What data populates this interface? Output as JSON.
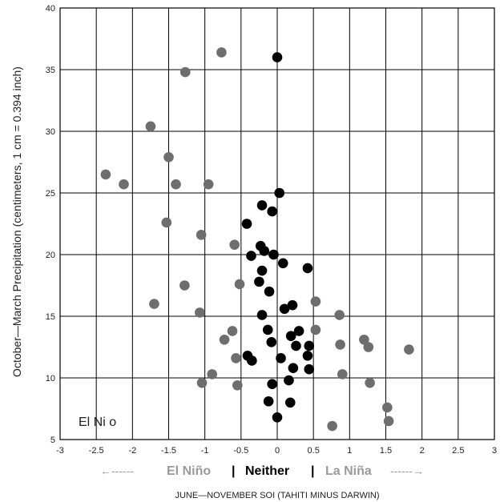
{
  "chart_data": {
    "type": "scatter",
    "ylabel": "October—March Precipitation (centimeters, 1 cm = 0.394 inch)",
    "xlabel": "JUNE—NOVEMBER SOI (TAHITI MINUS DARWIN)",
    "xlim": [
      -3,
      3
    ],
    "ylim": [
      5,
      40
    ],
    "x_ticks": [
      "-3",
      "-2.5",
      "-2",
      "-1.5",
      "-1",
      "-0.5",
      "0",
      "0.5",
      "1",
      "1.5",
      "2",
      "2.5",
      "3"
    ],
    "y_ticks": [
      "5",
      "10",
      "15",
      "20",
      "25",
      "30",
      "35",
      "40"
    ],
    "grid": true,
    "annotation": "El Ni o",
    "categories_bar": {
      "el_nino": "El Niño",
      "separator": "|",
      "neither": "Neither",
      "la_nina": "La Niña",
      "left_arrow": "←------",
      "right_arrow": "------→"
    },
    "colors": {
      "enso": "#6e6e6e",
      "neither": "#000000",
      "el_nino_text": "#9a9a9a",
      "la_nina_text": "#9a9a9a",
      "neither_text": "#000000"
    },
    "series": [
      {
        "category": "enso",
        "points": [
          [
            -0.77,
            36.4
          ],
          [
            -1.27,
            34.8
          ],
          [
            -1.75,
            30.4
          ],
          [
            -1.5,
            27.9
          ],
          [
            -2.37,
            26.5
          ],
          [
            -2.12,
            25.7
          ],
          [
            -1.4,
            25.7
          ],
          [
            -0.95,
            25.7
          ],
          [
            -1.53,
            22.6
          ],
          [
            -1.05,
            21.6
          ],
          [
            -0.59,
            20.8
          ],
          [
            -1.28,
            17.5
          ],
          [
            -0.52,
            17.6
          ],
          [
            -1.7,
            16.0
          ],
          [
            -1.07,
            15.3
          ],
          [
            -0.62,
            13.8
          ],
          [
            -0.73,
            13.1
          ],
          [
            -0.57,
            11.6
          ],
          [
            -0.9,
            10.3
          ],
          [
            -1.04,
            9.6
          ],
          [
            -0.55,
            9.4
          ],
          [
            0.53,
            16.2
          ],
          [
            0.86,
            15.1
          ],
          [
            0.53,
            13.9
          ],
          [
            0.87,
            12.7
          ],
          [
            1.2,
            13.1
          ],
          [
            1.26,
            12.5
          ],
          [
            1.82,
            12.3
          ],
          [
            0.9,
            10.3
          ],
          [
            1.28,
            9.6
          ],
          [
            1.52,
            7.6
          ],
          [
            1.54,
            6.5
          ],
          [
            0.76,
            6.1
          ]
        ]
      },
      {
        "category": "neither",
        "points": [
          [
            0.0,
            36.0
          ],
          [
            0.03,
            25.0
          ],
          [
            -0.21,
            24.0
          ],
          [
            -0.07,
            23.5
          ],
          [
            -0.42,
            22.5
          ],
          [
            -0.23,
            20.7
          ],
          [
            -0.18,
            20.3
          ],
          [
            -0.36,
            19.9
          ],
          [
            -0.05,
            20.0
          ],
          [
            0.08,
            19.3
          ],
          [
            0.42,
            18.9
          ],
          [
            -0.21,
            18.7
          ],
          [
            -0.25,
            17.8
          ],
          [
            -0.11,
            17.0
          ],
          [
            0.21,
            15.9
          ],
          [
            0.1,
            15.6
          ],
          [
            -0.21,
            15.1
          ],
          [
            -0.13,
            13.9
          ],
          [
            0.3,
            13.8
          ],
          [
            0.19,
            13.4
          ],
          [
            -0.08,
            12.9
          ],
          [
            0.26,
            12.6
          ],
          [
            0.44,
            12.6
          ],
          [
            -0.41,
            11.8
          ],
          [
            0.05,
            11.6
          ],
          [
            0.42,
            11.8
          ],
          [
            -0.35,
            11.4
          ],
          [
            0.22,
            10.8
          ],
          [
            0.44,
            10.7
          ],
          [
            0.16,
            9.8
          ],
          [
            -0.07,
            9.5
          ],
          [
            -0.12,
            8.1
          ],
          [
            0.18,
            8.0
          ],
          [
            0.0,
            6.8
          ]
        ]
      }
    ]
  }
}
